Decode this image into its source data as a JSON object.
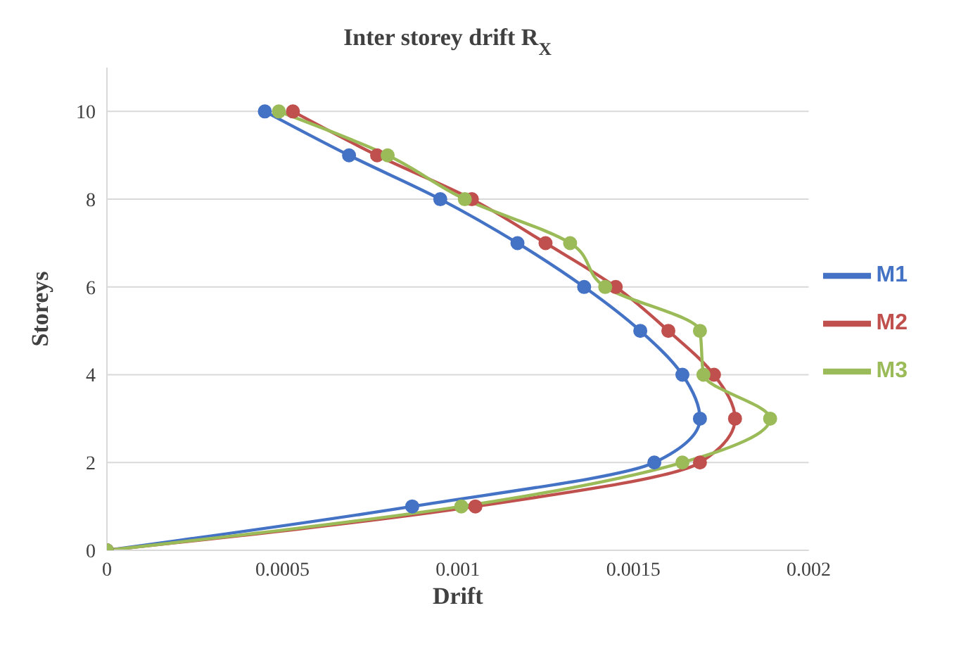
{
  "chart_data": {
    "type": "line",
    "title": "Inter storey drift R$_{X}$",
    "xlabel": "Drift",
    "ylabel": "Storeys",
    "series": [
      {
        "name": "M1",
        "color": "#4472c4",
        "x": [
          0,
          0.00087,
          0.00156,
          0.00169,
          0.00164,
          0.00152,
          0.00136,
          0.00117,
          0.00095,
          0.00069,
          0.00045
        ],
        "values": [
          0,
          1,
          2,
          3,
          4,
          5,
          6,
          7,
          8,
          9,
          10
        ]
      },
      {
        "name": "M2",
        "color": "#c0504d",
        "x": [
          0,
          0.00105,
          0.00169,
          0.00179,
          0.00173,
          0.0016,
          0.00145,
          0.00125,
          0.00104,
          0.00077,
          0.00053
        ],
        "values": [
          0,
          1,
          2,
          3,
          4,
          5,
          6,
          7,
          8,
          9,
          10
        ]
      },
      {
        "name": "M3",
        "color": "#9bbb59",
        "x": [
          0,
          0.00101,
          0.00164,
          0.00189,
          0.0017,
          0.00169,
          0.00142,
          0.00132,
          0.00102,
          0.0008,
          0.00049
        ],
        "values": [
          0,
          1,
          2,
          3,
          4,
          5,
          6,
          7,
          8,
          9,
          10
        ]
      }
    ],
    "xlim": [
      0,
      0.002
    ],
    "xticks": [
      0,
      0.0005,
      0.001,
      0.0015,
      0.002
    ],
    "ylim": [
      0,
      11
    ],
    "yticks": [
      0,
      2,
      4,
      6,
      8,
      10
    ],
    "grid": "y",
    "legend": "right",
    "marker": "circle",
    "line_style": "solid"
  }
}
